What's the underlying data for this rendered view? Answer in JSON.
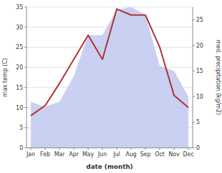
{
  "chart_data": {
    "type": "line",
    "xlabel": "date (month)",
    "ylabel": "max temp (C)",
    "y2label": "med. precipitation (kg/m2)",
    "categories": [
      "Jan",
      "Feb",
      "Mar",
      "Apr",
      "May",
      "Jun",
      "Jul",
      "Aug",
      "Sep",
      "Oct",
      "Nov",
      "Dec"
    ],
    "series": [
      {
        "type": "area",
        "axis": "y2",
        "color": "#c0c8f0",
        "values": [
          9,
          8,
          9,
          14,
          22,
          22,
          27,
          27.5,
          26,
          16,
          15,
          10
        ]
      },
      {
        "type": "line",
        "color": "#b03030",
        "values": [
          8,
          10.5,
          16,
          22,
          28,
          22,
          34.5,
          33,
          33,
          25,
          13,
          10
        ]
      }
    ],
    "ylim": [
      0,
      35
    ],
    "yticks": [
      0,
      5,
      10,
      15,
      20,
      25,
      30,
      35
    ],
    "y2lim": [
      0,
      27.5
    ],
    "y2ticks": [
      0,
      5,
      10,
      15,
      20,
      25
    ],
    "grid": true
  }
}
